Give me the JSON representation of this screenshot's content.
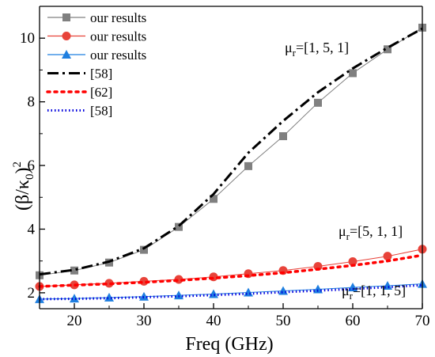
{
  "chart_data": {
    "type": "line",
    "xlabel": "Freq (GHz)",
    "ylabel_parts": [
      "(β/κ",
      "0",
      ")",
      "2"
    ],
    "xlim": [
      15,
      70
    ],
    "ylim": [
      1.5,
      11
    ],
    "xticks": [
      20,
      30,
      40,
      50,
      60,
      70
    ],
    "yticks": [
      2,
      4,
      6,
      8,
      10
    ],
    "grid": false,
    "legend_position": "top-left",
    "series": [
      {
        "name": "our results",
        "style": "solid-marker",
        "marker": "square",
        "color": "#808080",
        "x": [
          15,
          20,
          25,
          30,
          35,
          40,
          45,
          50,
          55,
          60,
          65,
          70
        ],
        "y": [
          2.55,
          2.7,
          2.95,
          3.35,
          4.07,
          4.95,
          5.98,
          6.92,
          7.97,
          8.9,
          9.65,
          10.33
        ]
      },
      {
        "name": "our results",
        "style": "solid-marker",
        "marker": "circle",
        "color": "#e8433a",
        "x": [
          15,
          20,
          25,
          30,
          35,
          40,
          45,
          50,
          55,
          60,
          65,
          70
        ],
        "y": [
          2.2,
          2.25,
          2.3,
          2.36,
          2.42,
          2.5,
          2.6,
          2.7,
          2.83,
          2.98,
          3.15,
          3.37
        ]
      },
      {
        "name": "our results",
        "style": "solid-marker",
        "marker": "triangle",
        "color": "#1f7fe0",
        "x": [
          15,
          20,
          25,
          30,
          35,
          40,
          45,
          50,
          55,
          60,
          65,
          70
        ],
        "y": [
          1.8,
          1.82,
          1.85,
          1.88,
          1.92,
          1.96,
          2.01,
          2.06,
          2.11,
          2.17,
          2.22,
          2.28
        ]
      },
      {
        "name": "[58]",
        "style": "dashdot",
        "marker": "none",
        "color": "#000000",
        "x": [
          15,
          20,
          25,
          30,
          35,
          40,
          45,
          50,
          55,
          60,
          65,
          70
        ],
        "y": [
          2.58,
          2.72,
          2.98,
          3.4,
          4.1,
          5.1,
          6.4,
          7.4,
          8.3,
          9.05,
          9.7,
          10.3
        ]
      },
      {
        "name": "[62]",
        "style": "dotted-thick",
        "marker": "none",
        "color": "#ff0000",
        "x": [
          15,
          20,
          25,
          30,
          35,
          40,
          45,
          50,
          55,
          60,
          65,
          70
        ],
        "y": [
          2.2,
          2.24,
          2.28,
          2.33,
          2.39,
          2.46,
          2.54,
          2.63,
          2.74,
          2.86,
          3.0,
          3.18
        ]
      },
      {
        "name": "[58]",
        "style": "dotted",
        "marker": "none",
        "color": "#0000dd",
        "x": [
          15,
          20,
          25,
          30,
          35,
          40,
          45,
          50,
          55,
          60,
          65,
          70
        ],
        "y": [
          1.8,
          1.81,
          1.83,
          1.86,
          1.89,
          1.93,
          1.97,
          2.02,
          2.07,
          2.12,
          2.18,
          2.24
        ]
      }
    ],
    "annotations": [
      {
        "prefix": "μ",
        "sub": "r",
        "rest": "=[1, 5, 1]"
      },
      {
        "prefix": "μ",
        "sub": "r",
        "rest": "=[5, 1, 1]"
      },
      {
        "prefix": "μ",
        "sub": "r",
        "rest": "=[1, 1, 5]"
      }
    ]
  }
}
